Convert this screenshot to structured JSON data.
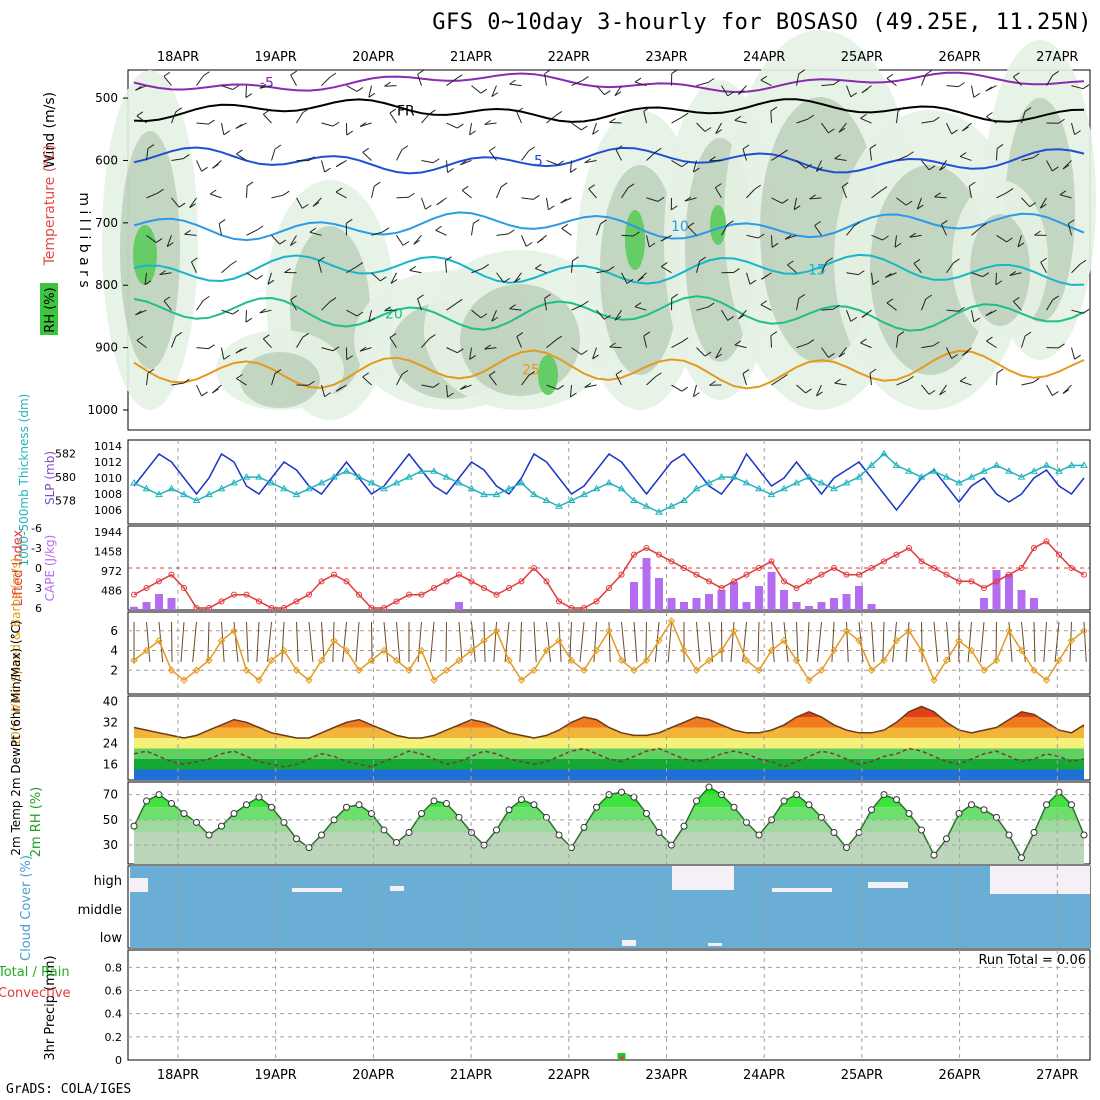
{
  "header": {
    "title": "GFS 0~10day 3-hourly for BOSASO (49.25E, 11.25N)",
    "footer": "GrADS: COLA/IGES"
  },
  "chart_data": [
    {
      "type": "contour",
      "panel": "upper-air",
      "ylabel": "m i l l i b a r s",
      "side_labels": [
        "Wind (m/s)",
        "Temperature (°C)",
        "RH (%)"
      ],
      "x_labels": [
        "18APR",
        "19APR",
        "20APR",
        "21APR",
        "22APR",
        "23APR",
        "24APR",
        "25APR",
        "26APR",
        "27APR"
      ],
      "y_ticks": [
        500,
        600,
        700,
        800,
        900,
        1000
      ],
      "ylim": [
        1000,
        455
      ],
      "isotherms": [
        {
          "label": "-5",
          "level": 475,
          "color": "#8a2ab0"
        },
        {
          "label": "FR",
          "level": 520,
          "color": "#000000"
        },
        {
          "label": "5",
          "level": 600,
          "color": "#1f4fd6"
        },
        {
          "label": "10",
          "level": 705,
          "color": "#2b9ae8"
        },
        {
          "label": "15",
          "level": 775,
          "color": "#19b5c8"
        },
        {
          "label": "20",
          "level": 845,
          "color": "#1fbe8c"
        },
        {
          "label": "25",
          "level": 935,
          "color": "#e39a1f"
        }
      ],
      "rh_shading": [
        "#e6f2e4",
        "#cfe3cc",
        "#b3c9b0",
        "#9fb49c",
        "#66cc66"
      ]
    },
    {
      "type": "line",
      "panel": "slp-thickness",
      "y_left_label": "1000-500mb Thickness (dm)",
      "y_right_label": "SLP (mb)",
      "y_left_ticks": [
        578,
        580,
        582
      ],
      "y_right_ticks": [
        1006,
        1008,
        1010,
        1012,
        1014
      ],
      "series": [
        {
          "name": "SLP (mb)",
          "color": "#1a36c8",
          "values": [
            1009,
            1011,
            1013,
            1012,
            1010,
            1008,
            1010,
            1013,
            1012,
            1009,
            1008,
            1010,
            1012,
            1011,
            1009,
            1008,
            1010,
            1012,
            1010,
            1008,
            1009,
            1011,
            1013,
            1011,
            1009,
            1008,
            1010,
            1012,
            1011,
            1009,
            1008,
            1010,
            1013,
            1012,
            1010,
            1008,
            1009,
            1011,
            1013,
            1012,
            1010,
            1008,
            1010,
            1012,
            1013,
            1011,
            1009,
            1008,
            1010,
            1013,
            1011,
            1009,
            1010,
            1012,
            1010,
            1008,
            1010,
            1011,
            1012,
            1010,
            1008,
            1006,
            1008,
            1010,
            1011,
            1009,
            1007,
            1009,
            1010,
            1008,
            1007,
            1008,
            1010,
            1011,
            1009,
            1008,
            1010
          ]
        },
        {
          "name": "Thickness (dm)",
          "color": "#22b3bf",
          "values": [
            579.5,
            579,
            578.5,
            579,
            578.5,
            578,
            578.5,
            579,
            579.5,
            580,
            580,
            579.5,
            579,
            578.5,
            579,
            579.5,
            580,
            580.5,
            580,
            579.5,
            579,
            579.5,
            580,
            580.5,
            580.5,
            580,
            579.5,
            579,
            578.5,
            578.5,
            579,
            579.5,
            578.5,
            578,
            577.5,
            578,
            578.5,
            579,
            579.5,
            579,
            578,
            577.5,
            577,
            577.5,
            578,
            579,
            579.5,
            580,
            580,
            579.5,
            579,
            578.5,
            579,
            579.5,
            580,
            579.5,
            579,
            579.5,
            580,
            581,
            582,
            581,
            580.5,
            580,
            580.5,
            580,
            579.5,
            580,
            580.5,
            581,
            580.5,
            580,
            580.5,
            581,
            580.5,
            581,
            581
          ]
        }
      ]
    },
    {
      "type": "bar",
      "panel": "cape-li",
      "y_left_label": "Lifted Index",
      "y_right_label": "CAPE (J/kg)",
      "y_left_ticks": [
        6,
        3,
        0,
        -3,
        -6
      ],
      "y_right_ticks": [
        486,
        972,
        1458,
        1944
      ],
      "series": [
        {
          "name": "Lifted Index",
          "color": "#e03a3a",
          "values": [
            4,
            3,
            2,
            1,
            3,
            6,
            6,
            5,
            4,
            4,
            5,
            6,
            6,
            5,
            4,
            2,
            1,
            2,
            4,
            6,
            6,
            5,
            4,
            4,
            3,
            2,
            1,
            2,
            3,
            4,
            3,
            2,
            0,
            2,
            5,
            6,
            6,
            5,
            3,
            1,
            -2,
            -3,
            -2,
            -1,
            0,
            1,
            2,
            3,
            2,
            1,
            0,
            -1,
            2,
            3,
            2,
            1,
            0,
            1,
            1,
            0,
            -1,
            -2,
            -3,
            -1,
            0,
            1,
            2,
            2,
            3,
            2,
            1,
            0,
            -3,
            -4,
            -2,
            0,
            1
          ]
        },
        {
          "name": "CAPE (J/kg)",
          "color": "#b46cf0",
          "values": [
            80,
            200,
            400,
            300,
            0,
            0,
            0,
            0,
            0,
            0,
            0,
            0,
            0,
            0,
            0,
            0,
            0,
            0,
            0,
            0,
            0,
            0,
            0,
            0,
            0,
            0,
            200,
            0,
            0,
            0,
            0,
            0,
            0,
            0,
            0,
            0,
            0,
            0,
            0,
            0,
            700,
            1300,
            800,
            300,
            200,
            300,
            400,
            500,
            700,
            200,
            600,
            950,
            500,
            200,
            100,
            200,
            300,
            400,
            600,
            150,
            0,
            0,
            0,
            0,
            0,
            0,
            0,
            0,
            300,
            1000,
            900,
            500,
            300,
            0,
            0,
            0,
            0
          ]
        }
      ]
    },
    {
      "type": "line",
      "panel": "wind10m",
      "ylabel": "10m Wind Speed & Barbs (m/s)",
      "y_ticks": [
        2,
        4,
        6
      ],
      "series": [
        {
          "name": "10m Wind Speed",
          "color": "#e39a1f",
          "values": [
            3,
            4,
            5,
            2,
            1,
            2,
            3,
            5,
            6,
            2,
            1,
            3,
            4,
            2,
            1,
            3,
            5,
            4,
            2,
            3,
            4,
            3,
            2,
            4,
            1,
            2,
            3,
            4,
            5,
            6,
            3,
            1,
            2,
            4,
            5,
            3,
            2,
            4,
            6,
            3,
            2,
            3,
            5,
            7,
            4,
            2,
            3,
            4,
            6,
            3,
            2,
            4,
            5,
            3,
            1,
            2,
            4,
            6,
            5,
            2,
            3,
            5,
            6,
            4,
            1,
            3,
            5,
            4,
            2,
            3,
            6,
            4,
            2,
            1,
            3,
            5,
            6
          ]
        }
      ]
    },
    {
      "type": "area",
      "panel": "temp2m",
      "ylabel": "2m Temp 2m DewPt (6hr Min/Max) (°C)",
      "y_ticks": [
        16,
        24,
        32,
        40
      ],
      "series": [
        {
          "name": "2m Temp",
          "color": "#6b3a1a",
          "values": [
            30,
            29,
            28,
            27,
            26,
            27,
            29,
            31,
            33,
            32,
            30,
            28,
            27,
            26,
            26,
            28,
            30,
            32,
            33,
            31,
            29,
            27,
            26,
            26,
            27,
            29,
            31,
            33,
            32,
            30,
            28,
            27,
            26,
            27,
            29,
            32,
            34,
            33,
            30,
            28,
            27,
            27,
            28,
            30,
            32,
            34,
            33,
            31,
            29,
            28,
            28,
            29,
            31,
            34,
            36,
            34,
            31,
            29,
            28,
            28,
            29,
            32,
            36,
            38,
            36,
            32,
            29,
            28,
            29,
            30,
            33,
            36,
            35,
            32,
            29,
            28,
            31
          ]
        },
        {
          "name": "2m DewPt",
          "color": "#7a3a3a",
          "values": [
            20,
            21,
            19,
            17,
            16,
            17,
            18,
            20,
            21,
            19,
            17,
            16,
            15,
            16,
            18,
            20,
            19,
            17,
            16,
            15,
            17,
            19,
            21,
            20,
            18,
            16,
            17,
            19,
            21,
            20,
            18,
            17,
            16,
            17,
            19,
            21,
            22,
            20,
            18,
            17,
            19,
            21,
            22,
            20,
            18,
            17,
            18,
            20,
            21,
            20,
            18,
            17,
            15,
            17,
            19,
            21,
            20,
            18,
            16,
            17,
            19,
            20,
            22,
            21,
            19,
            17,
            16,
            18,
            20,
            21,
            19,
            17,
            18,
            20,
            19,
            17,
            18
          ]
        }
      ]
    },
    {
      "type": "area",
      "panel": "rh2m",
      "ylabel": "2m RH (%)",
      "y_ticks": [
        30,
        50,
        70
      ],
      "series": [
        {
          "name": "2m RH",
          "color": "#11cc11",
          "values": [
            45,
            65,
            70,
            63,
            55,
            48,
            38,
            45,
            55,
            62,
            68,
            60,
            48,
            35,
            28,
            38,
            50,
            60,
            62,
            55,
            42,
            32,
            40,
            55,
            65,
            63,
            52,
            40,
            30,
            42,
            58,
            66,
            62,
            52,
            38,
            28,
            44,
            60,
            70,
            72,
            68,
            55,
            40,
            30,
            45,
            65,
            76,
            70,
            60,
            48,
            38,
            50,
            65,
            70,
            62,
            52,
            40,
            28,
            40,
            58,
            70,
            66,
            55,
            42,
            22,
            35,
            55,
            62,
            58,
            52,
            38,
            20,
            40,
            62,
            72,
            62,
            38
          ]
        }
      ]
    },
    {
      "type": "area",
      "panel": "cloud",
      "ylabel": "Cloud Cover (%)",
      "y_ticks": [
        "high",
        "middle",
        "low"
      ]
    },
    {
      "type": "bar",
      "panel": "precip",
      "ylabel": "3hr Precip (mm)",
      "side_labels": [
        "Total / Rain",
        "Convective"
      ],
      "y_ticks": [
        0,
        0.2,
        0.4,
        0.6,
        0.8
      ],
      "ylim": [
        0,
        0.95
      ],
      "annotation": "Run Total = 0.06",
      "series": [
        {
          "name": "Total / Rain",
          "color": "#22c322",
          "values": [
            0,
            0,
            0,
            0,
            0,
            0,
            0,
            0,
            0,
            0,
            0,
            0,
            0,
            0,
            0,
            0,
            0,
            0,
            0,
            0,
            0,
            0,
            0,
            0,
            0,
            0,
            0,
            0,
            0,
            0,
            0,
            0,
            0,
            0,
            0,
            0,
            0,
            0,
            0,
            0.06,
            0,
            0,
            0,
            0,
            0,
            0,
            0,
            0,
            0,
            0,
            0,
            0,
            0,
            0,
            0,
            0,
            0,
            0,
            0,
            0,
            0,
            0,
            0,
            0,
            0,
            0,
            0,
            0,
            0,
            0,
            0,
            0,
            0,
            0,
            0,
            0,
            0
          ]
        },
        {
          "name": "Convective",
          "color": "#e03a3a",
          "values": [
            0,
            0,
            0,
            0,
            0,
            0,
            0,
            0,
            0,
            0,
            0,
            0,
            0,
            0,
            0,
            0,
            0,
            0,
            0,
            0,
            0,
            0,
            0,
            0,
            0,
            0,
            0,
            0,
            0,
            0,
            0,
            0,
            0,
            0,
            0,
            0,
            0,
            0,
            0,
            0.03,
            0,
            0,
            0,
            0,
            0,
            0,
            0,
            0,
            0,
            0,
            0,
            0,
            0,
            0,
            0,
            0,
            0,
            0,
            0,
            0,
            0,
            0,
            0,
            0,
            0,
            0,
            0,
            0,
            0,
            0,
            0,
            0,
            0,
            0,
            0,
            0,
            0
          ]
        }
      ]
    }
  ]
}
